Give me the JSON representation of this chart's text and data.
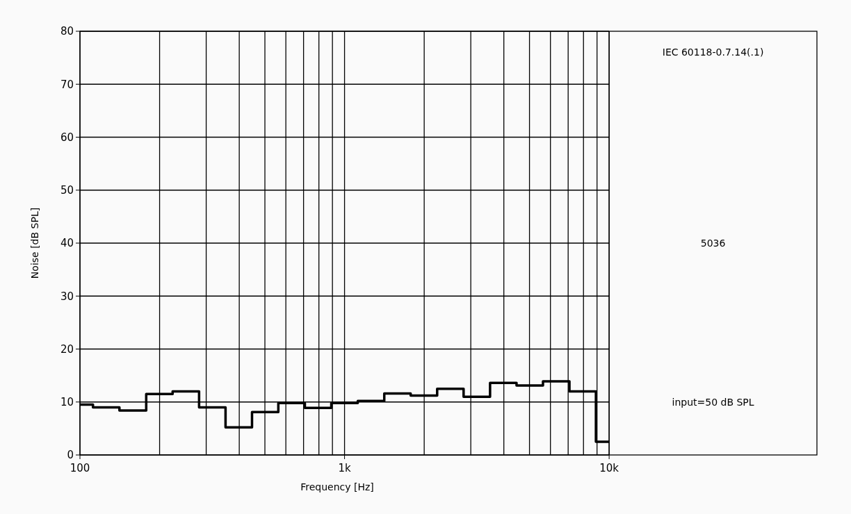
{
  "chart_data": {
    "type": "step",
    "xlabel": "Frequency [Hz]",
    "ylabel": "Noise [dB SPL]",
    "log": "x",
    "xlim": [
      100,
      61000
    ],
    "ylim": [
      0,
      80
    ],
    "xticks": [
      {
        "value": 100,
        "label": "100"
      },
      {
        "value": 200,
        "label": null
      },
      {
        "value": 300,
        "label": null
      },
      {
        "value": 400,
        "label": null
      },
      {
        "value": 500,
        "label": null
      },
      {
        "value": 600,
        "label": null
      },
      {
        "value": 700,
        "label": null
      },
      {
        "value": 800,
        "label": null
      },
      {
        "value": 900,
        "label": null
      },
      {
        "value": 1000,
        "label": "1k"
      },
      {
        "value": 2000,
        "label": null
      },
      {
        "value": 3000,
        "label": null
      },
      {
        "value": 4000,
        "label": null
      },
      {
        "value": 5000,
        "label": null
      },
      {
        "value": 6000,
        "label": null
      },
      {
        "value": 7000,
        "label": null
      },
      {
        "value": 8000,
        "label": null
      },
      {
        "value": 9000,
        "label": null
      },
      {
        "value": 10000,
        "label": "10k"
      }
    ],
    "yticks": [
      0,
      10,
      20,
      30,
      40,
      50,
      60,
      70,
      80
    ],
    "grid": true,
    "x": [
      100,
      112,
      141,
      178,
      224,
      282,
      355,
      447,
      562,
      708,
      891,
      1122,
      1413,
      1778,
      2239,
      2818,
      3548,
      4467,
      5623,
      7079,
      8913,
      10000
    ],
    "series": [
      {
        "color": "#000000",
        "values": [
          9.5,
          9.0,
          8.4,
          11.5,
          12.0,
          9.0,
          5.2,
          8.1,
          9.8,
          8.9,
          9.8,
          10.2,
          11.6,
          11.2,
          12.5,
          11.0,
          13.6,
          13.1,
          13.9,
          12.0,
          2.5,
          2.5
        ]
      }
    ],
    "annotations": [
      "IEC 60118-0.7.14(.1)",
      "5036",
      "input=50 dB SPL"
    ]
  }
}
